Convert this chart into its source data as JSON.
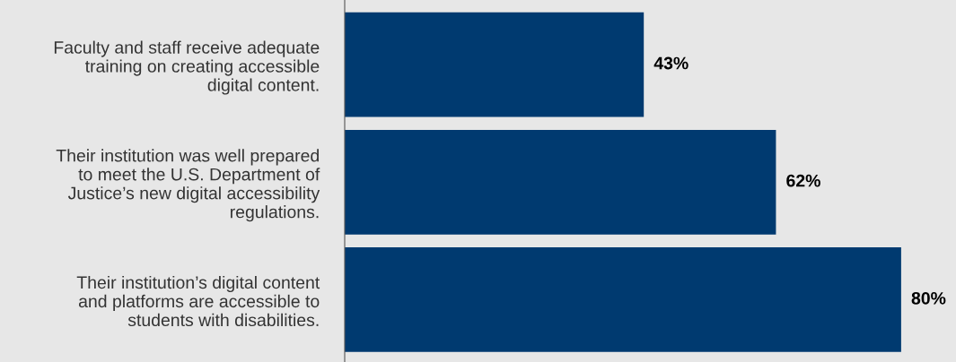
{
  "chart_data": {
    "type": "bar",
    "orientation": "horizontal",
    "categories": [
      "Faculty and staff receive adequate\ntraining on creating accessible\ndigital content.",
      "Their institution was well prepared\nto meet the U.S. Department of\nJustice’s new digital accessibility\nregulations.",
      "Their institution’s digital content\nand platforms are accessible to\nstudents with disabilities."
    ],
    "values": [
      43,
      62,
      80
    ],
    "value_labels": [
      "43%",
      "62%",
      "80%"
    ],
    "color": "#003a70",
    "tick_labels": "y",
    "grid": false,
    "legend": false
  }
}
